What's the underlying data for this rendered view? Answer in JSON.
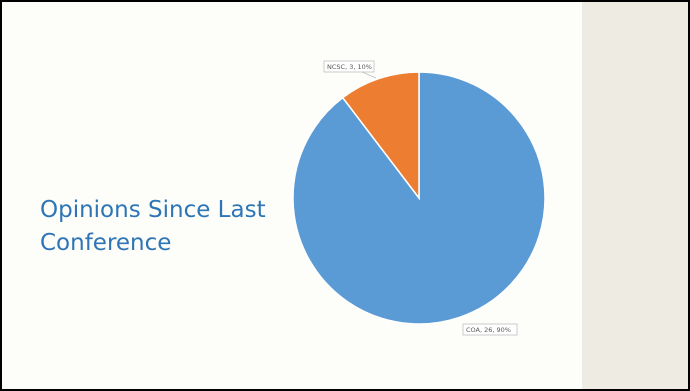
{
  "slide": {
    "title_line1": "Opinions Since Last",
    "title_line2": "Conference"
  },
  "chart_data": {
    "type": "pie",
    "title": "",
    "slices": [
      {
        "label": "COA",
        "value": 26,
        "percent": "90%",
        "display": "COA, 26, 90%",
        "color": "#5b9bd5"
      },
      {
        "label": "NCSC",
        "value": 3,
        "percent": "10%",
        "display": "NCSC, 3, 10%",
        "color": "#ed7d31"
      }
    ],
    "start_angle_deg": 0,
    "direction": "counterclockwise"
  }
}
